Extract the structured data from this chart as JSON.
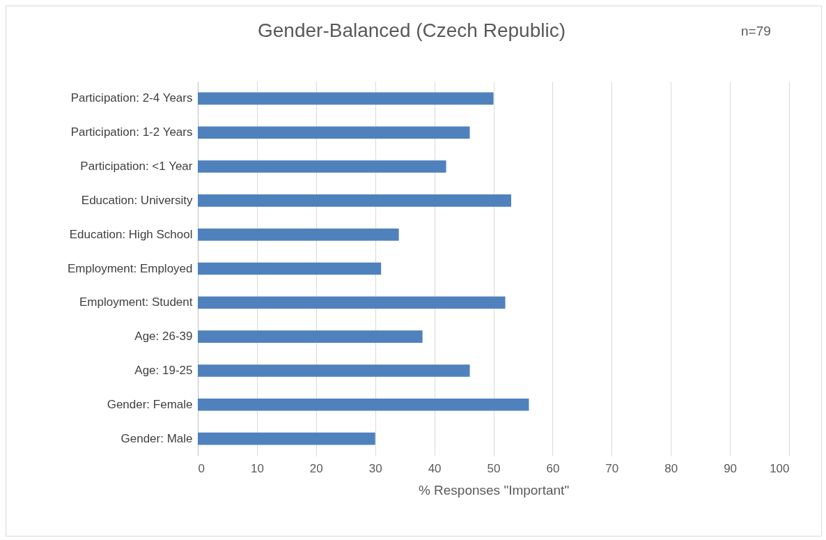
{
  "chart_data": {
    "type": "bar",
    "orientation": "horizontal",
    "title": "Gender-Balanced (Czech Republic)",
    "xlabel": "% Responses \"Important\"",
    "annotations": [
      "n=79"
    ],
    "categories": [
      "Participation: 2-4 Years",
      "Participation: 1-2 Years",
      "Participation: <1 Year",
      "Education: University",
      "Education: High School",
      "Employment: Employed",
      "Employment: Student",
      "Age: 26-39",
      "Age: 19-25",
      "Gender: Female",
      "Gender: Male"
    ],
    "values": [
      50,
      46,
      42,
      53,
      34,
      31,
      52,
      38,
      46,
      56,
      30
    ],
    "color": "#4f81bd",
    "xlim": [
      0,
      100
    ],
    "xticks": [
      0,
      10,
      20,
      30,
      40,
      50,
      60,
      70,
      80,
      90,
      100
    ],
    "grid": "x"
  }
}
